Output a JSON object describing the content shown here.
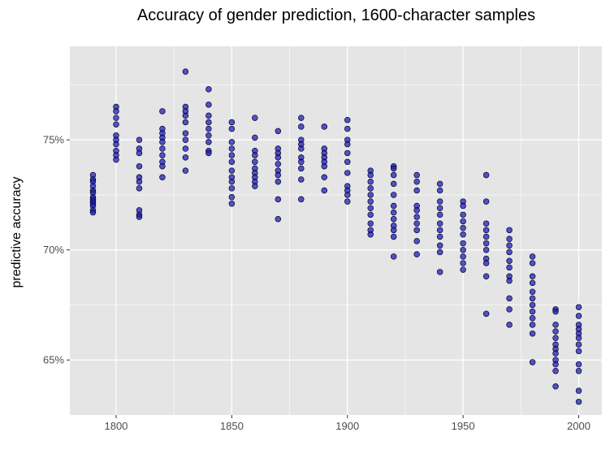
{
  "chart_data": {
    "type": "scatter",
    "title": "Accuracy of gender prediction, 1600-character samples",
    "xlabel": "",
    "ylabel": "predictive accuracy",
    "xlim": [
      1780,
      2010
    ],
    "ylim": [
      0.625,
      0.7925
    ],
    "x_ticks": [
      1800,
      1850,
      1900,
      1950,
      2000
    ],
    "x_tick_labels": [
      "1800",
      "1850",
      "1900",
      "1950",
      "2000"
    ],
    "y_ticks": [
      0.65,
      0.7,
      0.75
    ],
    "y_tick_labels": [
      "65%",
      "70%",
      "75%"
    ],
    "grid": true,
    "legend": "none",
    "colors": {
      "panel": "#e5e5e5",
      "grid": "#ffffff",
      "point_fill": "#1f1fb3",
      "point_stroke": "#000033"
    },
    "points": [
      {
        "x": 1790,
        "y": 0.734
      },
      {
        "x": 1790,
        "y": 0.732
      },
      {
        "x": 1790,
        "y": 0.731
      },
      {
        "x": 1790,
        "y": 0.729
      },
      {
        "x": 1790,
        "y": 0.727
      },
      {
        "x": 1790,
        "y": 0.726
      },
      {
        "x": 1790,
        "y": 0.724
      },
      {
        "x": 1790,
        "y": 0.723
      },
      {
        "x": 1790,
        "y": 0.722
      },
      {
        "x": 1790,
        "y": 0.721
      },
      {
        "x": 1790,
        "y": 0.72
      },
      {
        "x": 1790,
        "y": 0.718
      },
      {
        "x": 1790,
        "y": 0.717
      },
      {
        "x": 1800,
        "y": 0.765
      },
      {
        "x": 1800,
        "y": 0.763
      },
      {
        "x": 1800,
        "y": 0.76
      },
      {
        "x": 1800,
        "y": 0.757
      },
      {
        "x": 1800,
        "y": 0.752
      },
      {
        "x": 1800,
        "y": 0.75
      },
      {
        "x": 1800,
        "y": 0.748
      },
      {
        "x": 1800,
        "y": 0.745
      },
      {
        "x": 1800,
        "y": 0.743
      },
      {
        "x": 1800,
        "y": 0.741
      },
      {
        "x": 1810,
        "y": 0.75
      },
      {
        "x": 1810,
        "y": 0.746
      },
      {
        "x": 1810,
        "y": 0.744
      },
      {
        "x": 1810,
        "y": 0.738
      },
      {
        "x": 1810,
        "y": 0.733
      },
      {
        "x": 1810,
        "y": 0.731
      },
      {
        "x": 1810,
        "y": 0.728
      },
      {
        "x": 1810,
        "y": 0.718
      },
      {
        "x": 1810,
        "y": 0.716
      },
      {
        "x": 1810,
        "y": 0.715
      },
      {
        "x": 1820,
        "y": 0.763
      },
      {
        "x": 1820,
        "y": 0.755
      },
      {
        "x": 1820,
        "y": 0.753
      },
      {
        "x": 1820,
        "y": 0.751
      },
      {
        "x": 1820,
        "y": 0.749
      },
      {
        "x": 1820,
        "y": 0.746
      },
      {
        "x": 1820,
        "y": 0.743
      },
      {
        "x": 1820,
        "y": 0.74
      },
      {
        "x": 1820,
        "y": 0.738
      },
      {
        "x": 1820,
        "y": 0.733
      },
      {
        "x": 1830,
        "y": 0.781
      },
      {
        "x": 1830,
        "y": 0.765
      },
      {
        "x": 1830,
        "y": 0.763
      },
      {
        "x": 1830,
        "y": 0.761
      },
      {
        "x": 1830,
        "y": 0.758
      },
      {
        "x": 1830,
        "y": 0.753
      },
      {
        "x": 1830,
        "y": 0.75
      },
      {
        "x": 1830,
        "y": 0.746
      },
      {
        "x": 1830,
        "y": 0.742
      },
      {
        "x": 1830,
        "y": 0.736
      },
      {
        "x": 1840,
        "y": 0.773
      },
      {
        "x": 1840,
        "y": 0.766
      },
      {
        "x": 1840,
        "y": 0.761
      },
      {
        "x": 1840,
        "y": 0.758
      },
      {
        "x": 1840,
        "y": 0.755
      },
      {
        "x": 1840,
        "y": 0.752
      },
      {
        "x": 1840,
        "y": 0.749
      },
      {
        "x": 1840,
        "y": 0.745
      },
      {
        "x": 1840,
        "y": 0.744
      },
      {
        "x": 1850,
        "y": 0.758
      },
      {
        "x": 1850,
        "y": 0.755
      },
      {
        "x": 1850,
        "y": 0.749
      },
      {
        "x": 1850,
        "y": 0.746
      },
      {
        "x": 1850,
        "y": 0.743
      },
      {
        "x": 1850,
        "y": 0.74
      },
      {
        "x": 1850,
        "y": 0.736
      },
      {
        "x": 1850,
        "y": 0.733
      },
      {
        "x": 1850,
        "y": 0.731
      },
      {
        "x": 1850,
        "y": 0.728
      },
      {
        "x": 1850,
        "y": 0.724
      },
      {
        "x": 1850,
        "y": 0.721
      },
      {
        "x": 1860,
        "y": 0.76
      },
      {
        "x": 1860,
        "y": 0.751
      },
      {
        "x": 1860,
        "y": 0.745
      },
      {
        "x": 1860,
        "y": 0.743
      },
      {
        "x": 1860,
        "y": 0.74
      },
      {
        "x": 1860,
        "y": 0.737
      },
      {
        "x": 1860,
        "y": 0.735
      },
      {
        "x": 1860,
        "y": 0.733
      },
      {
        "x": 1860,
        "y": 0.731
      },
      {
        "x": 1860,
        "y": 0.729
      },
      {
        "x": 1870,
        "y": 0.754
      },
      {
        "x": 1870,
        "y": 0.746
      },
      {
        "x": 1870,
        "y": 0.744
      },
      {
        "x": 1870,
        "y": 0.742
      },
      {
        "x": 1870,
        "y": 0.739
      },
      {
        "x": 1870,
        "y": 0.736
      },
      {
        "x": 1870,
        "y": 0.734
      },
      {
        "x": 1870,
        "y": 0.731
      },
      {
        "x": 1870,
        "y": 0.723
      },
      {
        "x": 1870,
        "y": 0.714
      },
      {
        "x": 1880,
        "y": 0.76
      },
      {
        "x": 1880,
        "y": 0.756
      },
      {
        "x": 1880,
        "y": 0.75
      },
      {
        "x": 1880,
        "y": 0.748
      },
      {
        "x": 1880,
        "y": 0.746
      },
      {
        "x": 1880,
        "y": 0.742
      },
      {
        "x": 1880,
        "y": 0.74
      },
      {
        "x": 1880,
        "y": 0.737
      },
      {
        "x": 1880,
        "y": 0.732
      },
      {
        "x": 1880,
        "y": 0.723
      },
      {
        "x": 1890,
        "y": 0.756
      },
      {
        "x": 1890,
        "y": 0.746
      },
      {
        "x": 1890,
        "y": 0.744
      },
      {
        "x": 1890,
        "y": 0.742
      },
      {
        "x": 1890,
        "y": 0.74
      },
      {
        "x": 1890,
        "y": 0.738
      },
      {
        "x": 1890,
        "y": 0.733
      },
      {
        "x": 1890,
        "y": 0.727
      },
      {
        "x": 1900,
        "y": 0.759
      },
      {
        "x": 1900,
        "y": 0.755
      },
      {
        "x": 1900,
        "y": 0.75
      },
      {
        "x": 1900,
        "y": 0.748
      },
      {
        "x": 1900,
        "y": 0.744
      },
      {
        "x": 1900,
        "y": 0.74
      },
      {
        "x": 1900,
        "y": 0.735
      },
      {
        "x": 1900,
        "y": 0.729
      },
      {
        "x": 1900,
        "y": 0.727
      },
      {
        "x": 1900,
        "y": 0.725
      },
      {
        "x": 1900,
        "y": 0.722
      },
      {
        "x": 1910,
        "y": 0.736
      },
      {
        "x": 1910,
        "y": 0.734
      },
      {
        "x": 1910,
        "y": 0.731
      },
      {
        "x": 1910,
        "y": 0.728
      },
      {
        "x": 1910,
        "y": 0.725
      },
      {
        "x": 1910,
        "y": 0.722
      },
      {
        "x": 1910,
        "y": 0.719
      },
      {
        "x": 1910,
        "y": 0.716
      },
      {
        "x": 1910,
        "y": 0.712
      },
      {
        "x": 1910,
        "y": 0.709
      },
      {
        "x": 1910,
        "y": 0.707
      },
      {
        "x": 1920,
        "y": 0.738
      },
      {
        "x": 1920,
        "y": 0.737
      },
      {
        "x": 1920,
        "y": 0.734
      },
      {
        "x": 1920,
        "y": 0.73
      },
      {
        "x": 1920,
        "y": 0.725
      },
      {
        "x": 1920,
        "y": 0.72
      },
      {
        "x": 1920,
        "y": 0.717
      },
      {
        "x": 1920,
        "y": 0.714
      },
      {
        "x": 1920,
        "y": 0.711
      },
      {
        "x": 1920,
        "y": 0.709
      },
      {
        "x": 1920,
        "y": 0.706
      },
      {
        "x": 1920,
        "y": 0.697
      },
      {
        "x": 1930,
        "y": 0.734
      },
      {
        "x": 1930,
        "y": 0.731
      },
      {
        "x": 1930,
        "y": 0.727
      },
      {
        "x": 1930,
        "y": 0.72
      },
      {
        "x": 1930,
        "y": 0.718
      },
      {
        "x": 1930,
        "y": 0.715
      },
      {
        "x": 1930,
        "y": 0.712
      },
      {
        "x": 1930,
        "y": 0.709
      },
      {
        "x": 1930,
        "y": 0.704
      },
      {
        "x": 1930,
        "y": 0.698
      },
      {
        "x": 1940,
        "y": 0.73
      },
      {
        "x": 1940,
        "y": 0.727
      },
      {
        "x": 1940,
        "y": 0.722
      },
      {
        "x": 1940,
        "y": 0.719
      },
      {
        "x": 1940,
        "y": 0.716
      },
      {
        "x": 1940,
        "y": 0.712
      },
      {
        "x": 1940,
        "y": 0.709
      },
      {
        "x": 1940,
        "y": 0.706
      },
      {
        "x": 1940,
        "y": 0.702
      },
      {
        "x": 1940,
        "y": 0.699
      },
      {
        "x": 1940,
        "y": 0.69
      },
      {
        "x": 1950,
        "y": 0.722
      },
      {
        "x": 1950,
        "y": 0.72
      },
      {
        "x": 1950,
        "y": 0.716
      },
      {
        "x": 1950,
        "y": 0.713
      },
      {
        "x": 1950,
        "y": 0.71
      },
      {
        "x": 1950,
        "y": 0.707
      },
      {
        "x": 1950,
        "y": 0.703
      },
      {
        "x": 1950,
        "y": 0.7
      },
      {
        "x": 1950,
        "y": 0.697
      },
      {
        "x": 1950,
        "y": 0.694
      },
      {
        "x": 1950,
        "y": 0.691
      },
      {
        "x": 1960,
        "y": 0.734
      },
      {
        "x": 1960,
        "y": 0.722
      },
      {
        "x": 1960,
        "y": 0.712
      },
      {
        "x": 1960,
        "y": 0.709
      },
      {
        "x": 1960,
        "y": 0.706
      },
      {
        "x": 1960,
        "y": 0.703
      },
      {
        "x": 1960,
        "y": 0.7
      },
      {
        "x": 1960,
        "y": 0.696
      },
      {
        "x": 1960,
        "y": 0.694
      },
      {
        "x": 1960,
        "y": 0.688
      },
      {
        "x": 1960,
        "y": 0.671
      },
      {
        "x": 1970,
        "y": 0.709
      },
      {
        "x": 1970,
        "y": 0.705
      },
      {
        "x": 1970,
        "y": 0.702
      },
      {
        "x": 1970,
        "y": 0.699
      },
      {
        "x": 1970,
        "y": 0.695
      },
      {
        "x": 1970,
        "y": 0.692
      },
      {
        "x": 1970,
        "y": 0.688
      },
      {
        "x": 1970,
        "y": 0.686
      },
      {
        "x": 1970,
        "y": 0.678
      },
      {
        "x": 1970,
        "y": 0.673
      },
      {
        "x": 1970,
        "y": 0.666
      },
      {
        "x": 1980,
        "y": 0.697
      },
      {
        "x": 1980,
        "y": 0.694
      },
      {
        "x": 1980,
        "y": 0.688
      },
      {
        "x": 1980,
        "y": 0.685
      },
      {
        "x": 1980,
        "y": 0.681
      },
      {
        "x": 1980,
        "y": 0.678
      },
      {
        "x": 1980,
        "y": 0.675
      },
      {
        "x": 1980,
        "y": 0.672
      },
      {
        "x": 1980,
        "y": 0.669
      },
      {
        "x": 1980,
        "y": 0.666
      },
      {
        "x": 1980,
        "y": 0.662
      },
      {
        "x": 1980,
        "y": 0.649
      },
      {
        "x": 1990,
        "y": 0.673
      },
      {
        "x": 1990,
        "y": 0.672
      },
      {
        "x": 1990,
        "y": 0.666
      },
      {
        "x": 1990,
        "y": 0.663
      },
      {
        "x": 1990,
        "y": 0.66
      },
      {
        "x": 1990,
        "y": 0.657
      },
      {
        "x": 1990,
        "y": 0.655
      },
      {
        "x": 1990,
        "y": 0.653
      },
      {
        "x": 1990,
        "y": 0.65
      },
      {
        "x": 1990,
        "y": 0.648
      },
      {
        "x": 1990,
        "y": 0.645
      },
      {
        "x": 1990,
        "y": 0.638
      },
      {
        "x": 2000,
        "y": 0.674
      },
      {
        "x": 2000,
        "y": 0.67
      },
      {
        "x": 2000,
        "y": 0.666
      },
      {
        "x": 2000,
        "y": 0.664
      },
      {
        "x": 2000,
        "y": 0.662
      },
      {
        "x": 2000,
        "y": 0.66
      },
      {
        "x": 2000,
        "y": 0.657
      },
      {
        "x": 2000,
        "y": 0.654
      },
      {
        "x": 2000,
        "y": 0.648
      },
      {
        "x": 2000,
        "y": 0.645
      },
      {
        "x": 2000,
        "y": 0.636
      },
      {
        "x": 2000,
        "y": 0.631
      }
    ]
  }
}
